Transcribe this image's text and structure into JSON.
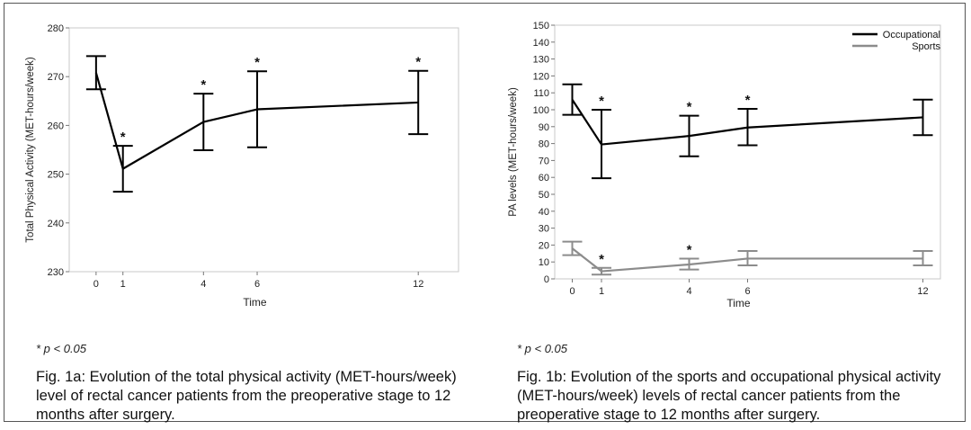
{
  "chart_data": [
    {
      "type": "line",
      "ylabel": "Total Physical Activity (MET-hours/week)",
      "xlabel": "Time",
      "x": [
        0,
        1,
        4,
        6,
        12
      ],
      "x_ticks": [
        "0",
        "1",
        "4",
        "6",
        "12"
      ],
      "ylim": [
        230,
        280
      ],
      "y_ticks": [
        "230",
        "240",
        "250",
        "260",
        "270",
        "280"
      ],
      "series": [
        {
          "values": [
            270.8,
            251.1,
            260.7,
            263.3,
            264.7
          ],
          "error_low": [
            267.4,
            246.4,
            254.9,
            255.5,
            258.2
          ],
          "error_high": [
            274.2,
            255.8,
            266.5,
            271.1,
            271.2
          ],
          "significant": [
            false,
            true,
            true,
            true,
            true
          ],
          "color": "#000000"
        }
      ],
      "significance_marker": "*",
      "grid": false
    },
    {
      "type": "line",
      "ylabel": "PA levels (MET-hours/week)",
      "xlabel": "Time",
      "x": [
        0,
        1,
        4,
        6,
        12
      ],
      "x_ticks": [
        "0",
        "1",
        "4",
        "6",
        "12"
      ],
      "ylim": [
        0,
        150
      ],
      "y_ticks": [
        "0",
        "10",
        "20",
        "30",
        "40",
        "50",
        "60",
        "70",
        "80",
        "90",
        "100",
        "110",
        "120",
        "130",
        "140",
        "150"
      ],
      "legend_position": "top-right",
      "series": [
        {
          "name": "Occupational",
          "values": [
            106,
            79.5,
            84.5,
            89.5,
            95.5
          ],
          "error_low": [
            97,
            59.5,
            72.5,
            79,
            85
          ],
          "error_high": [
            115,
            100,
            96.5,
            100.5,
            106
          ],
          "significant": [
            false,
            true,
            true,
            true,
            false
          ],
          "color": "#000000"
        },
        {
          "name": "Sports",
          "values": [
            18,
            4.5,
            8.5,
            12,
            12
          ],
          "error_low": [
            14,
            2.5,
            5.5,
            8,
            8
          ],
          "error_high": [
            22,
            6.5,
            12,
            16.5,
            16.5
          ],
          "significant": [
            false,
            true,
            true,
            false,
            false
          ],
          "color": "#8c8c8c"
        }
      ],
      "significance_marker": "*",
      "grid": false
    }
  ],
  "notes": {
    "left": "* p < 0.05",
    "right": "* p < 0.05"
  },
  "captions": {
    "left": "Fig. 1a: Evolution of the total physical activity (MET-hours/week) level of rectal cancer patients from the preoperative stage to 12 months after surgery.",
    "right": "Fig. 1b: Evolution of the sports and occupational physical activity (MET-hours/week) levels of rectal cancer patients from the preoperative stage to 12 months after surgery."
  }
}
